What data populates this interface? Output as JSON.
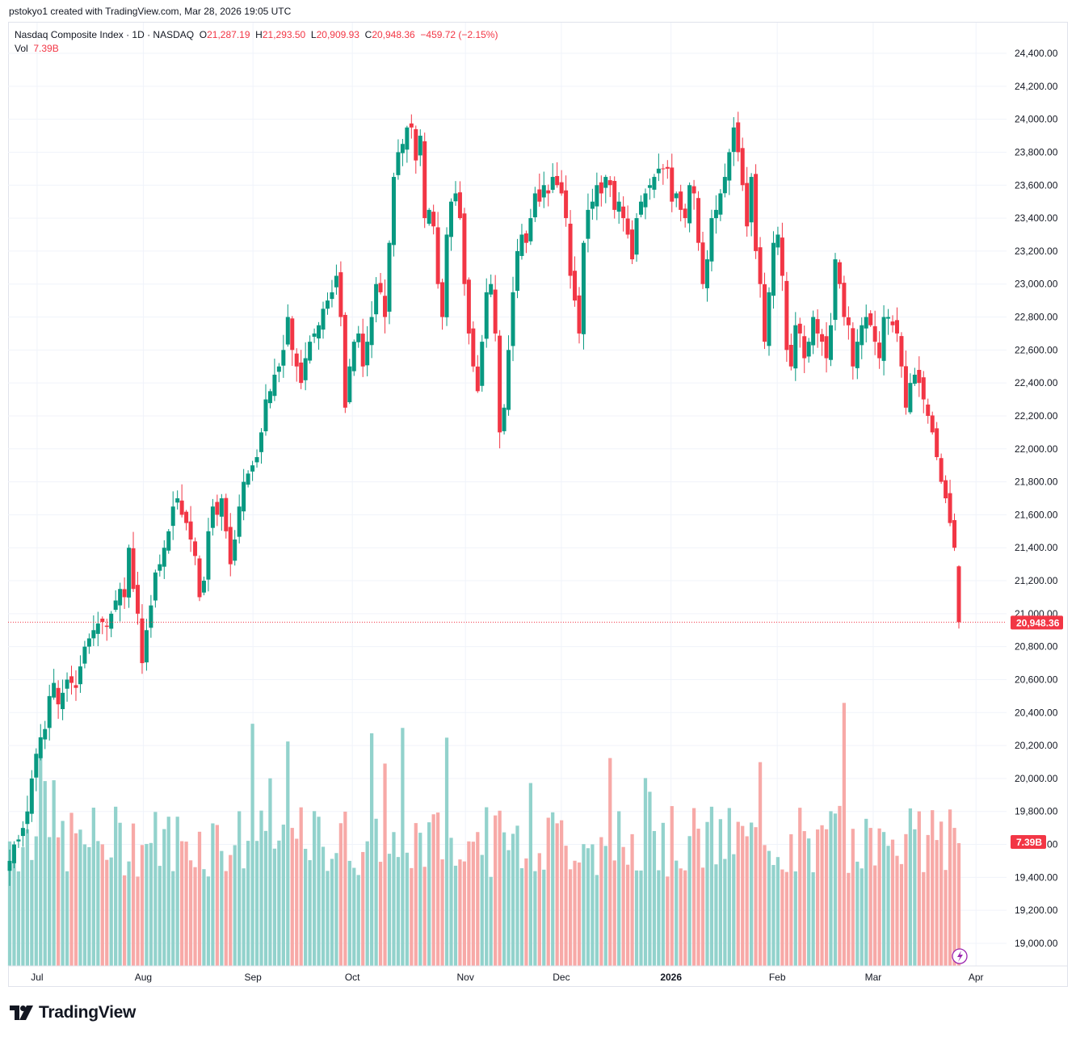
{
  "credit": "pstokyo1 created with TradingView.com, Mar 28, 2026 19:05 UTC",
  "legend": {
    "symbol": "Nasdaq Composite Index · 1D · NASDAQ",
    "o_label": "O",
    "o": "21,287.19",
    "h_label": "H",
    "h": "21,293.50",
    "l_label": "L",
    "l": "20,909.93",
    "c_label": "C",
    "c": "20,948.36",
    "change": "−459.72 (−2.15%)",
    "vol_label": "Vol",
    "vol": "7.39B"
  },
  "price_tag": "20,948.36",
  "vol_tag": "7.39B",
  "brand": "TradingView",
  "colors": {
    "up": "#089981",
    "down": "#f23645",
    "up_vol": "#92d2cc",
    "down_vol": "#f7a9a7",
    "grid": "#f0f3fa",
    "axis_text": "#131722"
  },
  "chart_data": {
    "type": "candlestick",
    "title": "Nasdaq Composite Index",
    "y_ticks": [
      "24,400.00",
      "24,200.00",
      "24,000.00",
      "23,800.00",
      "23,600.00",
      "23,400.00",
      "23,200.00",
      "23,000.00",
      "22,800.00",
      "22,600.00",
      "22,400.00",
      "22,200.00",
      "22,000.00",
      "21,800.00",
      "21,600.00",
      "21,400.00",
      "21,200.00",
      "21,000.00",
      "20,800.00",
      "20,600.00",
      "20,400.00",
      "20,200.00",
      "20,000.00",
      "19,800.00",
      "19,600.00",
      "19,400.00",
      "19,200.00",
      "19,000.00"
    ],
    "x_labels": [
      {
        "label": "Jul",
        "date": "2025-07-01"
      },
      {
        "label": "Aug",
        "date": "2025-08-01"
      },
      {
        "label": "Sep",
        "date": "2025-09-02"
      },
      {
        "label": "Oct",
        "date": "2025-10-01"
      },
      {
        "label": "Nov",
        "date": "2025-11-03"
      },
      {
        "label": "Dec",
        "date": "2025-12-01"
      },
      {
        "label": "2026",
        "date": "2026-01-02",
        "bold": true
      },
      {
        "label": "Feb",
        "date": "2026-02-02"
      },
      {
        "label": "Mar",
        "date": "2026-03-02"
      },
      {
        "label": "Apr",
        "date": "2026-04-01"
      }
    ],
    "ylim": [
      18950,
      24500
    ],
    "last_close": 20948.36,
    "closes": [
      19500,
      19600,
      19630,
      19700,
      19800,
      20000,
      20150,
      20250,
      20300,
      20500,
      20580,
      20450,
      20520,
      20600,
      20580,
      20550,
      20680,
      20800,
      20850,
      20900,
      20940,
      20950,
      20920,
      21000,
      21080,
      21150,
      21100,
      21400,
      21150,
      21000,
      20700,
      20900,
      21050,
      21250,
      21300,
      21400,
      21500,
      21650,
      21700,
      21600,
      21550,
      21450,
      21350,
      21100,
      21200,
      21500,
      21650,
      21600,
      21700,
      21500,
      21300,
      21450,
      21650,
      21800,
      21850,
      21900,
      21950,
      22100,
      22300,
      22350,
      22450,
      22500,
      22600,
      22800,
      22600,
      22500,
      22400,
      22550,
      22650,
      22700,
      22750,
      22850,
      22900,
      22950,
      23050,
      22800,
      22250,
      22500,
      22650,
      22700,
      22500,
      22650,
      22800,
      23000,
      22950,
      22800,
      23250,
      23650,
      23800,
      23850,
      23950,
      23950,
      23750,
      23900,
      23400,
      23450,
      23350,
      23000,
      22800,
      23300,
      23500,
      23550,
      23400,
      23000,
      22700,
      22500,
      22350,
      22650,
      22950,
      23000,
      22700,
      22100,
      22250,
      22600,
      22950,
      23200,
      23300,
      23250,
      23400,
      23550,
      23500,
      23600,
      23550,
      23650,
      23600,
      23550,
      23400,
      23050,
      22900,
      22700,
      23250,
      23450,
      23500,
      23600,
      23550,
      23650,
      23600,
      23450,
      23500,
      23400,
      23300,
      23150,
      23400,
      23500,
      23550,
      23600,
      23650,
      23700,
      23700,
      23700,
      23500,
      23550,
      23450,
      23400,
      23600,
      23550,
      23250,
      23000,
      23150,
      23400,
      23450,
      23550,
      23650,
      23800,
      23950,
      23800,
      23600,
      23350,
      23650,
      23200,
      23000,
      22650,
      22950,
      23250,
      23300,
      23050,
      22600,
      22500,
      22750,
      22700,
      22550,
      22650,
      22800,
      22700,
      22650,
      22550,
      22750,
      23150,
      23000,
      22800,
      22750,
      22500,
      22650,
      22750,
      22800,
      22750,
      22650,
      22550,
      22800,
      22800,
      22750,
      22700,
      22500,
      22250,
      22400,
      22450,
      22400,
      22300,
      22200,
      22100,
      21950,
      21800,
      21700,
      21550,
      21400,
      20948.36
    ],
    "vol_scale": "relative",
    "last_volume": "7.39B"
  }
}
